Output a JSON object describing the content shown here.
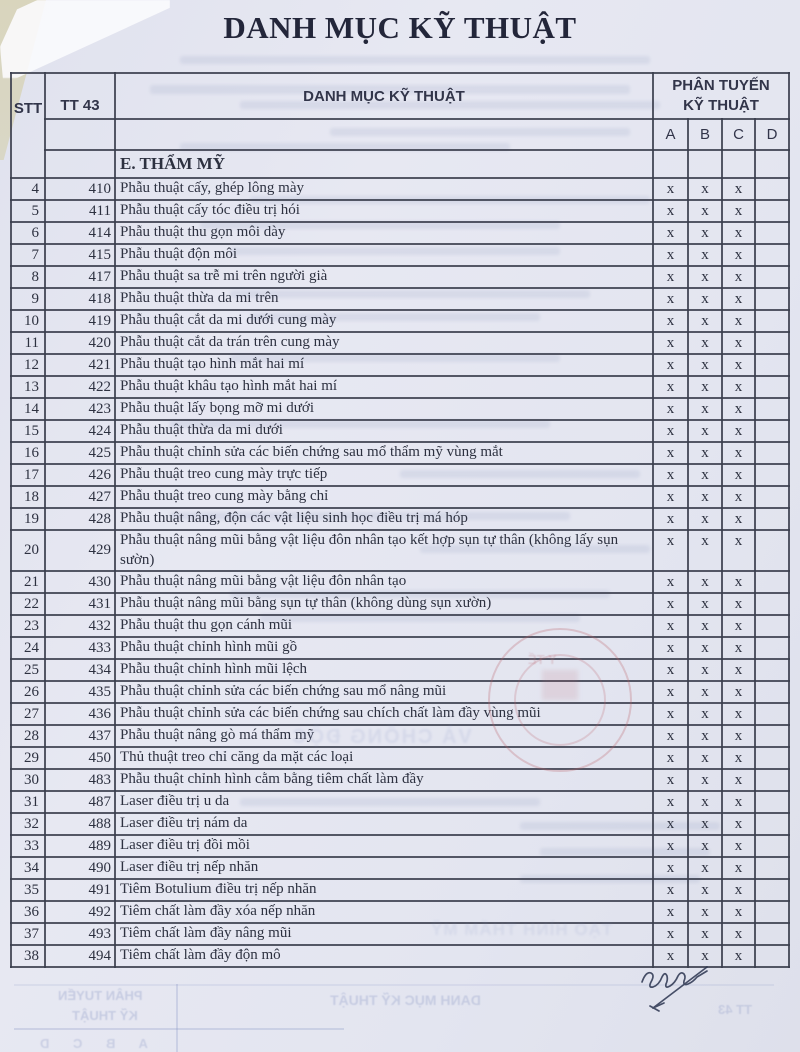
{
  "title": "DANH MỤC KỸ THUẬT",
  "table": {
    "headers": {
      "stt": "STT",
      "tt43": "TT 43",
      "name": "DANH MỤC KỸ THUẬT",
      "group_line1": "PHÂN TUYẾN",
      "group_line2": "KỸ THUẬT",
      "cols": [
        "A",
        "B",
        "C",
        "D"
      ]
    },
    "section": "E. THẨM MỸ",
    "rows": [
      {
        "stt": "4",
        "tt43": "410",
        "name": "Phẫu thuật cấy, ghép lông mày",
        "marks": [
          "x",
          "x",
          "x",
          ""
        ]
      },
      {
        "stt": "5",
        "tt43": "411",
        "name": "Phẫu thuật cấy tóc điều trị hói",
        "marks": [
          "x",
          "x",
          "x",
          ""
        ]
      },
      {
        "stt": "6",
        "tt43": "414",
        "name": "Phẫu thuật thu gọn môi dày",
        "marks": [
          "x",
          "x",
          "x",
          ""
        ]
      },
      {
        "stt": "7",
        "tt43": "415",
        "name": "Phẫu thuật độn môi",
        "marks": [
          "x",
          "x",
          "x",
          ""
        ]
      },
      {
        "stt": "8",
        "tt43": "417",
        "name": "Phẫu thuật sa trễ mi trên người già",
        "marks": [
          "x",
          "x",
          "x",
          ""
        ]
      },
      {
        "stt": "9",
        "tt43": "418",
        "name": "Phẫu thuật thừa da mi trên",
        "marks": [
          "x",
          "x",
          "x",
          ""
        ]
      },
      {
        "stt": "10",
        "tt43": "419",
        "name": "Phẫu thuật cắt da mi dưới cung mày",
        "marks": [
          "x",
          "x",
          "x",
          ""
        ]
      },
      {
        "stt": "11",
        "tt43": "420",
        "name": "Phẫu thuật cắt da trán trên cung mày",
        "marks": [
          "x",
          "x",
          "x",
          ""
        ]
      },
      {
        "stt": "12",
        "tt43": "421",
        "name": "Phẫu thuật tạo hình mắt hai mí",
        "marks": [
          "x",
          "x",
          "x",
          ""
        ]
      },
      {
        "stt": "13",
        "tt43": "422",
        "name": "Phẫu thuật khâu tạo hình mắt hai mí",
        "marks": [
          "x",
          "x",
          "x",
          ""
        ]
      },
      {
        "stt": "14",
        "tt43": "423",
        "name": "Phẫu thuật lấy bọng mỡ mi dưới",
        "marks": [
          "x",
          "x",
          "x",
          ""
        ]
      },
      {
        "stt": "15",
        "tt43": "424",
        "name": "Phẫu thuật thừa da mi dưới",
        "marks": [
          "x",
          "x",
          "x",
          ""
        ]
      },
      {
        "stt": "16",
        "tt43": "425",
        "name": "Phẫu thuật chỉnh sửa các biến chứng sau mổ thẩm mỹ vùng mắt",
        "marks": [
          "x",
          "x",
          "x",
          ""
        ]
      },
      {
        "stt": "17",
        "tt43": "426",
        "name": "Phẫu thuật treo cung mày trực tiếp",
        "marks": [
          "x",
          "x",
          "x",
          ""
        ]
      },
      {
        "stt": "18",
        "tt43": "427",
        "name": "Phẫu thuật treo cung mày bằng chỉ",
        "marks": [
          "x",
          "x",
          "x",
          ""
        ]
      },
      {
        "stt": "19",
        "tt43": "428",
        "name": "Phẫu thuật nâng, độn các vật liệu sinh học điều trị má hóp",
        "marks": [
          "x",
          "x",
          "x",
          ""
        ]
      },
      {
        "stt": "20",
        "tt43": "429",
        "name": "Phẫu thuật nâng mũi bằng vật liệu đôn nhân tạo kết hợp sụn tự thân (không lấy sụn sườn)",
        "marks": [
          "x",
          "x",
          "x",
          ""
        ]
      },
      {
        "stt": "21",
        "tt43": "430",
        "name": "Phẫu thuật nâng mũi bằng vật liệu đôn nhân tạo",
        "marks": [
          "x",
          "x",
          "x",
          ""
        ]
      },
      {
        "stt": "22",
        "tt43": "431",
        "name": "Phẫu thuật nâng mũi bằng sụn tự thân (không dùng sụn xườn)",
        "marks": [
          "x",
          "x",
          "x",
          ""
        ]
      },
      {
        "stt": "23",
        "tt43": "432",
        "name": "Phẫu thuật thu gọn cánh mũi",
        "marks": [
          "x",
          "x",
          "x",
          ""
        ]
      },
      {
        "stt": "24",
        "tt43": "433",
        "name": "Phẫu thuật chỉnh hình mũi gồ",
        "marks": [
          "x",
          "x",
          "x",
          ""
        ]
      },
      {
        "stt": "25",
        "tt43": "434",
        "name": "Phẫu thuật chỉnh hình mũi lệch",
        "marks": [
          "x",
          "x",
          "x",
          ""
        ]
      },
      {
        "stt": "26",
        "tt43": "435",
        "name": "Phẫu thuật chỉnh sửa các biến chứng sau mổ nâng mũi",
        "marks": [
          "x",
          "x",
          "x",
          ""
        ]
      },
      {
        "stt": "27",
        "tt43": "436",
        "name": "Phẫu thuật chỉnh sửa các biến chứng sau chích chất làm đầy vùng mũi",
        "marks": [
          "x",
          "x",
          "x",
          ""
        ]
      },
      {
        "stt": "28",
        "tt43": "437",
        "name": "Phẫu thuật nâng gò má thẩm mỹ",
        "marks": [
          "x",
          "x",
          "x",
          ""
        ]
      },
      {
        "stt": "29",
        "tt43": "450",
        "name": "Thủ thuật treo chỉ căng da mặt các loại",
        "marks": [
          "x",
          "x",
          "x",
          ""
        ]
      },
      {
        "stt": "30",
        "tt43": "483",
        "name": "Phẫu thuật chỉnh hình cằm bằng tiêm chất làm đầy",
        "marks": [
          "x",
          "x",
          "x",
          ""
        ]
      },
      {
        "stt": "31",
        "tt43": "487",
        "name": "Laser điều trị u da",
        "marks": [
          "x",
          "x",
          "x",
          ""
        ]
      },
      {
        "stt": "32",
        "tt43": "488",
        "name": "Laser điều trị nám da",
        "marks": [
          "x",
          "x",
          "x",
          ""
        ]
      },
      {
        "stt": "33",
        "tt43": "489",
        "name": "Laser điều trị đồi mồi",
        "marks": [
          "x",
          "x",
          "x",
          ""
        ]
      },
      {
        "stt": "34",
        "tt43": "490",
        "name": "Laser điều trị nếp nhăn",
        "marks": [
          "x",
          "x",
          "x",
          ""
        ]
      },
      {
        "stt": "35",
        "tt43": "491",
        "name": "Tiêm Botulium điều trị nếp nhăn",
        "marks": [
          "x",
          "x",
          "x",
          ""
        ]
      },
      {
        "stt": "36",
        "tt43": "492",
        "name": "Tiêm chất làm đầy xóa nếp nhăn",
        "marks": [
          "x",
          "x",
          "x",
          ""
        ]
      },
      {
        "stt": "37",
        "tt43": "493",
        "name": "Tiêm chất làm đầy nâng mũi",
        "marks": [
          "x",
          "x",
          "x",
          ""
        ]
      },
      {
        "stt": "38",
        "tt43": "494",
        "name": "Tiêm chất làm đầy độn mô",
        "marks": [
          "x",
          "x",
          "x",
          ""
        ]
      }
    ]
  },
  "bleed_through": {
    "next_page_title": "DANH MỤC KỸ THUẬT",
    "group_line1": "PHÂN TUYẾN",
    "group_line2": "KỸ THUẬT",
    "tt43": "TT 43",
    "cols": "A    B    C    D",
    "back_text_mid": "VÀ CHỐNG ĐỘC",
    "back_text_low": "TẠO HÌNH THẨM MỸ",
    "stamp_text": "Y TẾ"
  },
  "colors": {
    "paper": "#e4e6f0",
    "ink": "#2d3140",
    "border": "#3a3d4c",
    "stamp_red": "#ba6068",
    "bleed_blue": "#8a97c4"
  }
}
